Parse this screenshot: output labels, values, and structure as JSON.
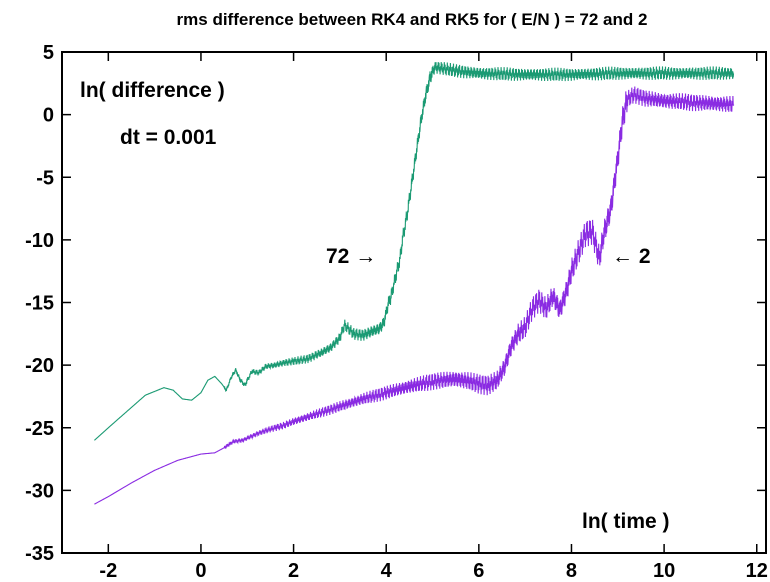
{
  "chart_data": {
    "type": "line",
    "title": "rms difference between RK4 and RK5 for ( E/N ) = 72 and 2",
    "xlabel": "ln( time )",
    "ylabel": "ln( difference )",
    "xlim": [
      -3,
      12.2
    ],
    "ylim": [
      -35,
      5
    ],
    "xticks": [
      -2,
      0,
      2,
      4,
      6,
      8,
      10,
      12
    ],
    "yticks": [
      5,
      0,
      -5,
      -10,
      -15,
      -20,
      -25,
      -30,
      -35
    ],
    "grid": false,
    "annotations": {
      "dt": "dt = 0.001",
      "label_72": "72 →",
      "label_2": "← 2"
    },
    "series": [
      {
        "name": "72",
        "color": "#1b9a73",
        "points": [
          [
            -2.3,
            -26.0
          ],
          [
            -2.0,
            -25.0
          ],
          [
            -1.6,
            -23.7
          ],
          [
            -1.2,
            -22.4
          ],
          [
            -0.8,
            -21.8
          ],
          [
            -0.6,
            -22.0
          ],
          [
            -0.4,
            -22.7
          ],
          [
            -0.2,
            -22.8
          ],
          [
            0.0,
            -22.2
          ],
          [
            0.15,
            -21.2
          ],
          [
            0.3,
            -20.9
          ],
          [
            0.45,
            -21.5
          ],
          [
            0.55,
            -22.0
          ],
          [
            0.65,
            -21.0
          ],
          [
            0.75,
            -20.4
          ],
          [
            0.85,
            -21.2
          ],
          [
            0.95,
            -21.6
          ],
          [
            1.1,
            -20.5
          ],
          [
            1.25,
            -20.6
          ],
          [
            1.4,
            -20.1
          ],
          [
            1.6,
            -20.0
          ],
          [
            1.8,
            -19.8
          ],
          [
            2.0,
            -19.7
          ],
          [
            2.3,
            -19.5
          ],
          [
            2.6,
            -19.0
          ],
          [
            2.8,
            -18.6
          ],
          [
            3.0,
            -17.8
          ],
          [
            3.1,
            -16.8
          ],
          [
            3.3,
            -17.5
          ],
          [
            3.5,
            -17.6
          ],
          [
            3.7,
            -17.3
          ],
          [
            3.85,
            -17.1
          ],
          [
            3.95,
            -16.6
          ],
          [
            4.05,
            -15.0
          ],
          [
            4.1,
            -14.6
          ],
          [
            4.2,
            -13.0
          ],
          [
            4.3,
            -11.5
          ],
          [
            4.35,
            -10.0
          ],
          [
            4.45,
            -8.0
          ],
          [
            4.55,
            -5.5
          ],
          [
            4.65,
            -3.0
          ],
          [
            4.75,
            -0.5
          ],
          [
            4.85,
            1.5
          ],
          [
            4.95,
            3.0
          ],
          [
            5.05,
            3.8
          ],
          [
            5.5,
            3.5
          ],
          [
            6.0,
            3.3
          ],
          [
            7.0,
            3.2
          ],
          [
            8.0,
            3.2
          ],
          [
            9.0,
            3.3
          ],
          [
            10.0,
            3.3
          ],
          [
            11.0,
            3.3
          ],
          [
            11.5,
            3.3
          ]
        ],
        "band": 0.4
      },
      {
        "name": "2",
        "color": "#8a2be2",
        "points": [
          [
            -2.3,
            -31.1
          ],
          [
            -2.0,
            -30.5
          ],
          [
            -1.5,
            -29.4
          ],
          [
            -1.0,
            -28.4
          ],
          [
            -0.5,
            -27.6
          ],
          [
            0.0,
            -27.1
          ],
          [
            0.3,
            -27.0
          ],
          [
            0.5,
            -26.6
          ],
          [
            0.7,
            -26.1
          ],
          [
            0.9,
            -26.0
          ],
          [
            1.2,
            -25.5
          ],
          [
            1.5,
            -25.1
          ],
          [
            1.8,
            -24.8
          ],
          [
            2.0,
            -24.5
          ],
          [
            2.5,
            -23.9
          ],
          [
            3.0,
            -23.3
          ],
          [
            3.5,
            -22.7
          ],
          [
            4.0,
            -22.2
          ],
          [
            4.5,
            -21.7
          ],
          [
            5.0,
            -21.3
          ],
          [
            5.5,
            -21.1
          ],
          [
            5.8,
            -21.3
          ],
          [
            6.0,
            -21.5
          ],
          [
            6.2,
            -21.6
          ],
          [
            6.4,
            -21.2
          ],
          [
            6.55,
            -20.2
          ],
          [
            6.7,
            -18.5
          ],
          [
            6.85,
            -17.5
          ],
          [
            7.0,
            -17.0
          ],
          [
            7.15,
            -15.5
          ],
          [
            7.3,
            -14.8
          ],
          [
            7.45,
            -15.5
          ],
          [
            7.6,
            -14.5
          ],
          [
            7.75,
            -15.6
          ],
          [
            7.9,
            -14.0
          ],
          [
            8.0,
            -12.5
          ],
          [
            8.15,
            -11.0
          ],
          [
            8.3,
            -9.5
          ],
          [
            8.45,
            -9.3
          ],
          [
            8.6,
            -11.5
          ],
          [
            8.7,
            -9.5
          ],
          [
            8.85,
            -7.5
          ],
          [
            9.0,
            -3.5
          ],
          [
            9.1,
            -0.5
          ],
          [
            9.2,
            1.2
          ],
          [
            9.35,
            1.6
          ],
          [
            9.6,
            1.3
          ],
          [
            10.0,
            1.1
          ],
          [
            10.5,
            1.0
          ],
          [
            11.0,
            0.9
          ],
          [
            11.5,
            0.8
          ]
        ],
        "band": 0.6
      }
    ]
  }
}
